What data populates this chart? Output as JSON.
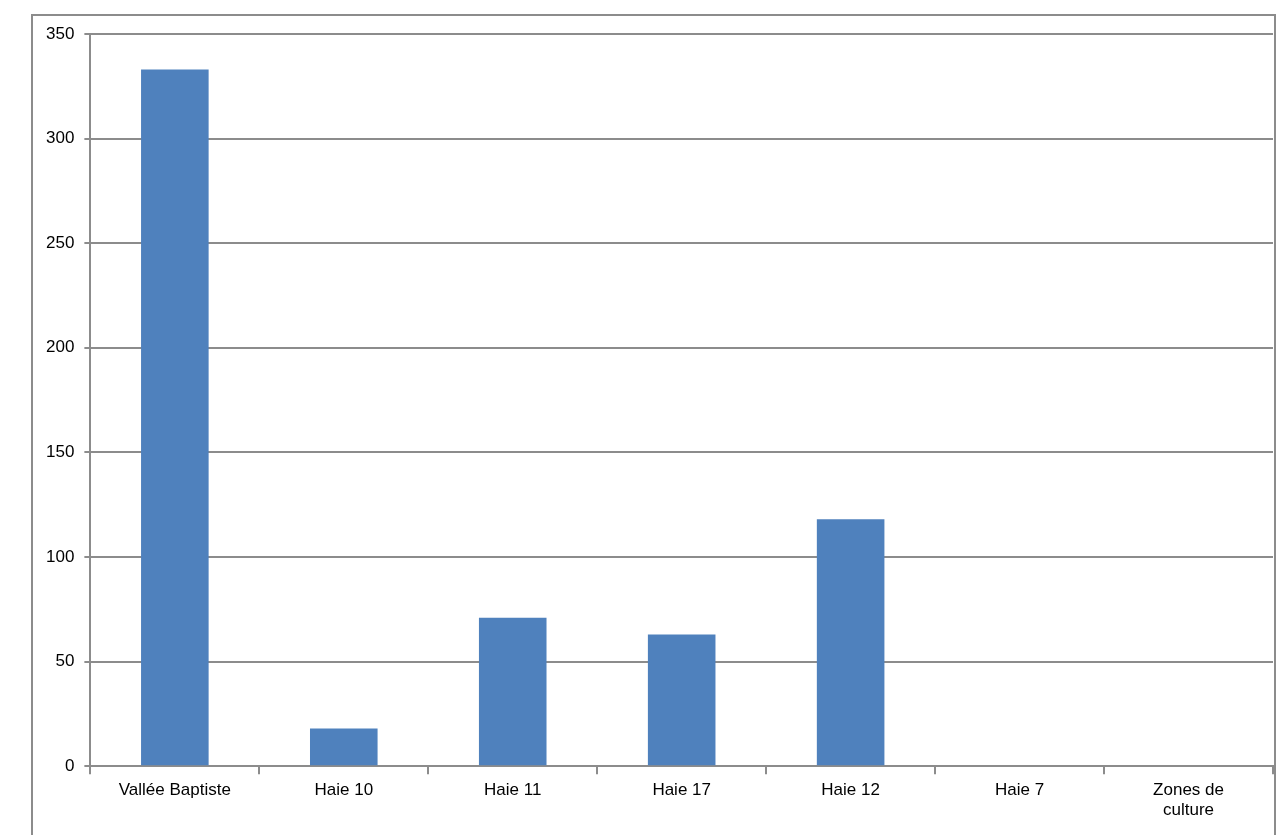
{
  "chart_data": {
    "type": "bar",
    "categories": [
      "Vallée Baptiste",
      "Haie 10",
      "Haie 11",
      "Haie 17",
      "Haie 12",
      "Haie 7",
      [
        "Zones de",
        "culture"
      ]
    ],
    "values": [
      333,
      18,
      71,
      63,
      118,
      0,
      0
    ],
    "color": "#4f81bd",
    "ylim": [
      0,
      350
    ],
    "yticks": [
      0,
      50,
      100,
      150,
      200,
      250,
      300,
      350
    ],
    "grid": "y",
    "legend": false
  }
}
